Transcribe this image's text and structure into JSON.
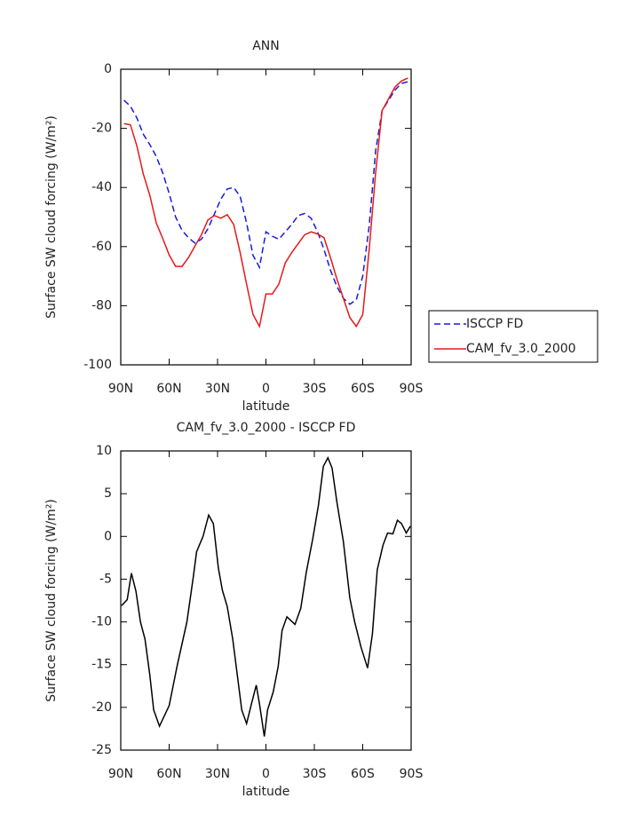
{
  "chart_data": [
    {
      "type": "line",
      "title": "ANN",
      "xlabel": "latitude",
      "ylabel": "Surface SW cloud forcing (W/m²)",
      "x": [
        88,
        84,
        80,
        76,
        72,
        68,
        64,
        60,
        56,
        52,
        48,
        44,
        40,
        36,
        32,
        28,
        24,
        20,
        16,
        12,
        8,
        4,
        0,
        -4,
        -8,
        -12,
        -16,
        -20,
        -24,
        -28,
        -32,
        -36,
        -40,
        -44,
        -48,
        -52,
        -56,
        -60,
        -64,
        -68,
        -72,
        -76,
        -80,
        -84,
        -88
      ],
      "series": [
        {
          "name": "ISCCP FD",
          "color": "#1a1adb",
          "dash": true,
          "values": [
            -10.5,
            -12.5,
            -16.5,
            -22,
            -25.5,
            -29.5,
            -35,
            -42,
            -50,
            -54.5,
            -57,
            -58.8,
            -57.5,
            -54,
            -49,
            -44,
            -40.5,
            -40,
            -43,
            -52,
            -63,
            -67,
            -55,
            -56.5,
            -57.5,
            -55,
            -52.5,
            -49.5,
            -48.8,
            -50.4,
            -55,
            -61,
            -68,
            -73.5,
            -77.5,
            -79.5,
            -78,
            -70,
            -53,
            -27.6,
            -14,
            -10.5,
            -7,
            -4.8,
            -4.2
          ]
        },
        {
          "name": "CAM_fv_3.0_2000",
          "color": "#e41a1a",
          "dash": false,
          "values": [
            -18.4,
            -18.8,
            -26,
            -35.5,
            -42.6,
            -52,
            -57.2,
            -62.8,
            -66.7,
            -66.7,
            -63.7,
            -59.8,
            -56,
            -51,
            -49.5,
            -50.4,
            -49.2,
            -52.5,
            -62,
            -72.7,
            -83,
            -87,
            -76,
            -76,
            -72.7,
            -65.5,
            -62,
            -59,
            -56,
            -55,
            -55.7,
            -57,
            -63.7,
            -71,
            -77.5,
            -84,
            -87,
            -83,
            -61,
            -35,
            -14,
            -10,
            -6,
            -4,
            -3
          ]
        }
      ],
      "xlim": [
        90,
        -90
      ],
      "xticks": [
        {
          "value": 90,
          "label": "90N"
        },
        {
          "value": 60,
          "label": "60N"
        },
        {
          "value": 30,
          "label": "30N"
        },
        0,
        {
          "value": -30,
          "label": "30S"
        },
        {
          "value": -60,
          "label": "60S"
        },
        {
          "value": -90,
          "label": "90S"
        }
      ],
      "ylim": [
        -100,
        0
      ],
      "yticks": [
        0,
        -20,
        -40,
        -60,
        -80,
        -100
      ],
      "legend": "right"
    },
    {
      "type": "line",
      "title": "CAM_fv_3.0_2000 - ISCCP FD",
      "xlabel": "latitude",
      "ylabel": "Surface SW cloud forcing (W/m²)",
      "x": [
        89.5,
        86,
        83.4,
        80.6,
        77.8,
        75,
        72,
        69.6,
        66,
        60,
        55,
        49,
        45,
        43,
        39,
        35.5,
        32.6,
        29.5,
        27,
        24,
        20.6,
        15,
        12,
        9,
        6,
        4,
        1,
        -1,
        -4.5,
        -7.6,
        -10,
        -13,
        -18,
        -21.6,
        -25,
        -29,
        -32.5,
        -35.6,
        -38.4,
        -41,
        -44,
        -48,
        -52,
        -55,
        -59,
        -63,
        -66,
        -69,
        -72.6,
        -75.4,
        -78.7,
        -81.5,
        -84,
        -87,
        -89.5
      ],
      "series": [
        {
          "name": "CAM_fv_3.0_2000 - ISCCP FD",
          "color": "#000000",
          "dash": false,
          "values": [
            -8.1,
            -7.4,
            -4.3,
            -6.4,
            -10,
            -12,
            -16.2,
            -20.3,
            -22.2,
            -19.8,
            -15.1,
            -10,
            -4.7,
            -1.8,
            0,
            2.5,
            1.5,
            -3.7,
            -6.3,
            -8.2,
            -12,
            -20.3,
            -21.9,
            -19.6,
            -17.4,
            -19.6,
            -23.4,
            -20.3,
            -18.2,
            -15.2,
            -11,
            -9.4,
            -10.3,
            -8.4,
            -4.2,
            -0.3,
            3.6,
            8.2,
            9.2,
            8,
            4,
            -0.6,
            -7.2,
            -10,
            -13,
            -15.4,
            -11.4,
            -3.9,
            -1,
            0.4,
            0.3,
            1.9,
            1.5,
            0.4,
            1.2
          ]
        }
      ],
      "xlim": [
        90,
        -90
      ],
      "xticks": [
        {
          "value": 90,
          "label": "90N"
        },
        {
          "value": 60,
          "label": "60N"
        },
        {
          "value": 30,
          "label": "30N"
        },
        0,
        {
          "value": -30,
          "label": "30S"
        },
        {
          "value": -60,
          "label": "60S"
        },
        {
          "value": -90,
          "label": "90S"
        }
      ],
      "ylim": [
        -25,
        10
      ],
      "yticks": [
        10,
        5,
        0,
        -5,
        -10,
        -15,
        -20,
        -25
      ]
    }
  ]
}
